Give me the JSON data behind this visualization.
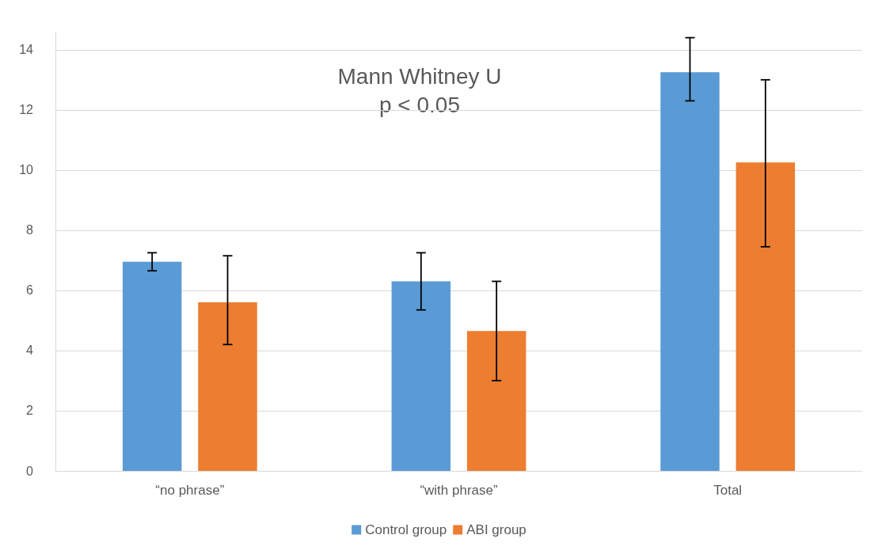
{
  "chart_data": {
    "type": "bar",
    "categories": [
      "“no phrase”",
      "“with phrase”",
      "Total"
    ],
    "series": [
      {
        "name": "Control group",
        "color": "#5b9bd5",
        "values": [
          6.95,
          6.3,
          13.25
        ],
        "errors": [
          [
            6.65,
            7.25
          ],
          [
            5.35,
            7.25
          ],
          [
            12.3,
            14.4
          ]
        ]
      },
      {
        "name": "ABI group",
        "color": "#ed7d31",
        "values": [
          5.6,
          4.65,
          10.25
        ],
        "errors": [
          [
            4.2,
            7.15
          ],
          [
            3.0,
            6.3
          ],
          [
            7.45,
            13.0
          ]
        ]
      }
    ],
    "ylim": [
      0,
      14.6
    ],
    "yticks": [
      0,
      2,
      4,
      6,
      8,
      10,
      12,
      14
    ],
    "grid": "y",
    "legend": "bottom",
    "annotations": [
      "Mann Whitney U",
      "p < 0.05"
    ]
  }
}
